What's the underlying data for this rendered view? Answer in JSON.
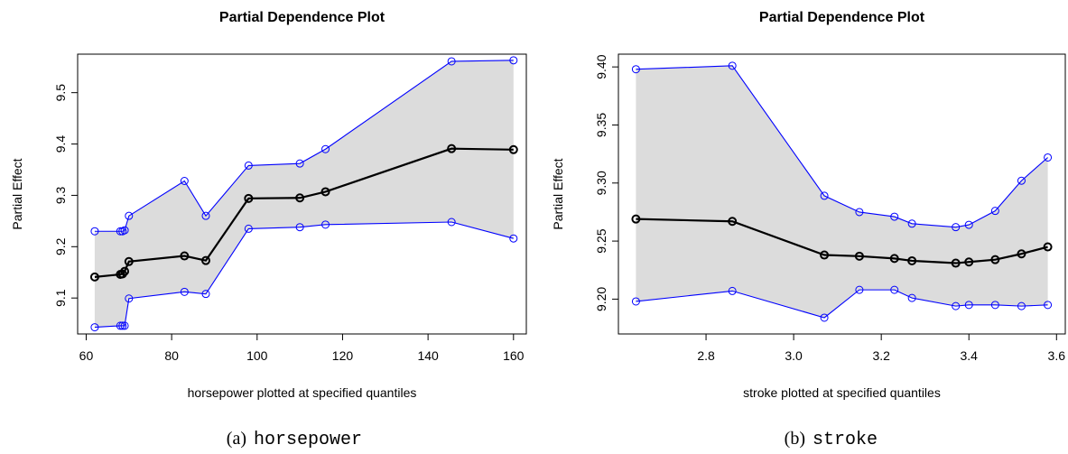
{
  "figure": {
    "panels": [
      {
        "caption_label": "(a)",
        "caption_var": "horsepower"
      },
      {
        "caption_label": "(b)",
        "caption_var": "stroke"
      }
    ]
  },
  "colors": {
    "band_fill": "#dcdcdc",
    "bound_line": "#0000ff",
    "main_line": "#000000"
  },
  "chart_data": [
    {
      "type": "line",
      "title": "Partial Dependence Plot",
      "xlabel": "horsepower plotted at specified quantiles",
      "ylabel": "Partial Effect",
      "xlim": [
        58,
        163
      ],
      "ylim": [
        9.03,
        9.575
      ],
      "xticks": [
        60,
        80,
        100,
        120,
        140,
        160
      ],
      "yticks": [
        9.1,
        9.2,
        9.3,
        9.4,
        9.5
      ],
      "x": [
        62,
        68,
        68.5,
        69,
        70,
        83,
        88,
        98,
        110,
        116,
        145.5,
        160
      ],
      "series": [
        {
          "role": "upper",
          "values": [
            9.23,
            9.23,
            9.23,
            9.232,
            9.26,
            9.328,
            9.26,
            9.358,
            9.362,
            9.39,
            9.561,
            9.563
          ]
        },
        {
          "role": "estimate",
          "values": [
            9.141,
            9.146,
            9.147,
            9.152,
            9.171,
            9.182,
            9.173,
            9.294,
            9.295,
            9.307,
            9.391,
            9.389
          ]
        },
        {
          "role": "lower",
          "values": [
            9.043,
            9.046,
            9.046,
            9.046,
            9.099,
            9.112,
            9.108,
            9.235,
            9.238,
            9.243,
            9.248,
            9.216
          ]
        }
      ]
    },
    {
      "type": "line",
      "title": "Partial Dependence Plot",
      "xlabel": "stroke plotted at specified quantiles",
      "ylabel": "Partial Effect",
      "xlim": [
        2.6,
        3.62
      ],
      "ylim": [
        9.17,
        9.411
      ],
      "xticks": [
        2.8,
        3.0,
        3.2,
        3.4,
        3.6
      ],
      "xtick_labels": [
        "2.8",
        "3.0",
        "3.2",
        "3.4",
        "3.6"
      ],
      "yticks": [
        9.2,
        9.25,
        9.3,
        9.35,
        9.4
      ],
      "ytick_labels": [
        "9.20",
        "9.25",
        "9.30",
        "9.35",
        "9.40"
      ],
      "x": [
        2.64,
        2.86,
        3.07,
        3.15,
        3.23,
        3.27,
        3.37,
        3.4,
        3.46,
        3.52,
        3.58
      ],
      "series": [
        {
          "role": "upper",
          "values": [
            9.398,
            9.401,
            9.289,
            9.275,
            9.271,
            9.265,
            9.262,
            9.264,
            9.276,
            9.302,
            9.322
          ]
        },
        {
          "role": "estimate",
          "values": [
            9.269,
            9.267,
            9.238,
            9.237,
            9.235,
            9.233,
            9.231,
            9.232,
            9.234,
            9.239,
            9.245
          ]
        },
        {
          "role": "lower",
          "values": [
            9.198,
            9.207,
            9.184,
            9.208,
            9.208,
            9.201,
            9.194,
            9.195,
            9.195,
            9.194,
            9.195
          ]
        }
      ]
    }
  ]
}
